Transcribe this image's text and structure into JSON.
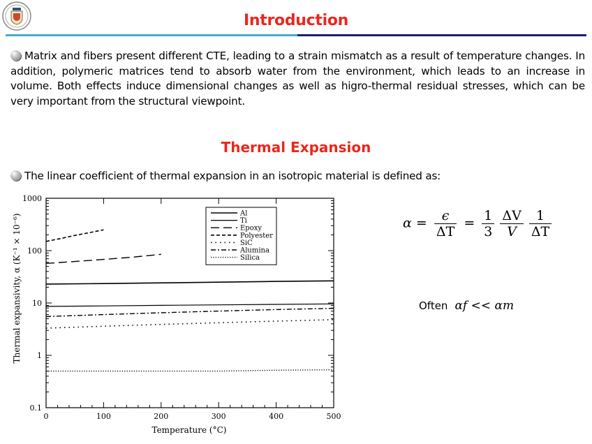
{
  "header": {
    "title": "Introduction",
    "logo_icon": "university-crest-icon"
  },
  "intro": {
    "paragraph": "Matrix and fibers present different CTE, leading to a strain mismatch as a result of temperature changes. In addition, polymeric matrices tend to absorb water from the environment, which leads to an increase in volume. Both effects induce dimensional changes as well as higro-thermal residual stresses, which can be very important from the structural viewpoint."
  },
  "section": {
    "title": "Thermal Expansion",
    "paragraph": "The linear coefficient of thermal expansion in an isotropic material is defined as:"
  },
  "formula": {
    "alpha": "α",
    "eq": "=",
    "epsilon": "ϵ",
    "delta_t": "ΔT",
    "one": "1",
    "three": "3",
    "delta_v": "ΔV",
    "v": "V"
  },
  "note": {
    "prefix": "Often",
    "math": "αf << αm"
  },
  "colors": {
    "title": "#e8281e",
    "rule_left": "#4aa9c9",
    "rule_right": "#1d1d6e"
  },
  "chart_data": {
    "type": "line",
    "xlabel": "Temperature (°C)",
    "ylabel": "Thermal expansivity, α (K⁻¹ × 10⁻⁶)",
    "xlim": [
      0,
      500
    ],
    "ylim": [
      0.1,
      1000
    ],
    "yscale": "log",
    "x_ticks": [
      0,
      100,
      200,
      300,
      400,
      500
    ],
    "y_ticks": [
      {
        "value": 0.1,
        "label": "0.1"
      },
      {
        "value": 1,
        "label": "1"
      },
      {
        "value": 10,
        "label": "10"
      },
      {
        "value": 100,
        "label": "100"
      },
      {
        "value": 1000,
        "label": "1000"
      }
    ],
    "legend_position": "top-right",
    "series": [
      {
        "name": "Al",
        "style": "solid",
        "x": [
          0,
          100,
          200,
          300,
          400,
          500
        ],
        "y": [
          23,
          23.5,
          24.2,
          25,
          25.8,
          26.5
        ]
      },
      {
        "name": "Ti",
        "style": "solid-thin",
        "x": [
          0,
          100,
          200,
          300,
          400,
          500
        ],
        "y": [
          8.6,
          8.8,
          9.0,
          9.2,
          9.4,
          9.6
        ]
      },
      {
        "name": "Epoxy",
        "style": "long-dash",
        "x": [
          0,
          50,
          100,
          150,
          200
        ],
        "y": [
          57,
          62,
          68,
          75,
          85
        ]
      },
      {
        "name": "Polyester",
        "style": "dash",
        "x": [
          0,
          25,
          50,
          75,
          100
        ],
        "y": [
          150,
          170,
          195,
          220,
          250
        ]
      },
      {
        "name": "SiC",
        "style": "dotted",
        "x": [
          0,
          100,
          200,
          300,
          400,
          500
        ],
        "y": [
          3.3,
          3.6,
          3.9,
          4.2,
          4.5,
          4.8
        ]
      },
      {
        "name": "Alumina",
        "style": "dash-dot",
        "x": [
          0,
          100,
          200,
          300,
          400,
          500
        ],
        "y": [
          5.5,
          6.0,
          6.5,
          7.0,
          7.5,
          7.9
        ]
      },
      {
        "name": "Silica",
        "style": "fine-dot",
        "x": [
          0,
          100,
          200,
          300,
          400,
          500
        ],
        "y": [
          0.5,
          0.5,
          0.5,
          0.5,
          0.52,
          0.53
        ]
      }
    ]
  }
}
